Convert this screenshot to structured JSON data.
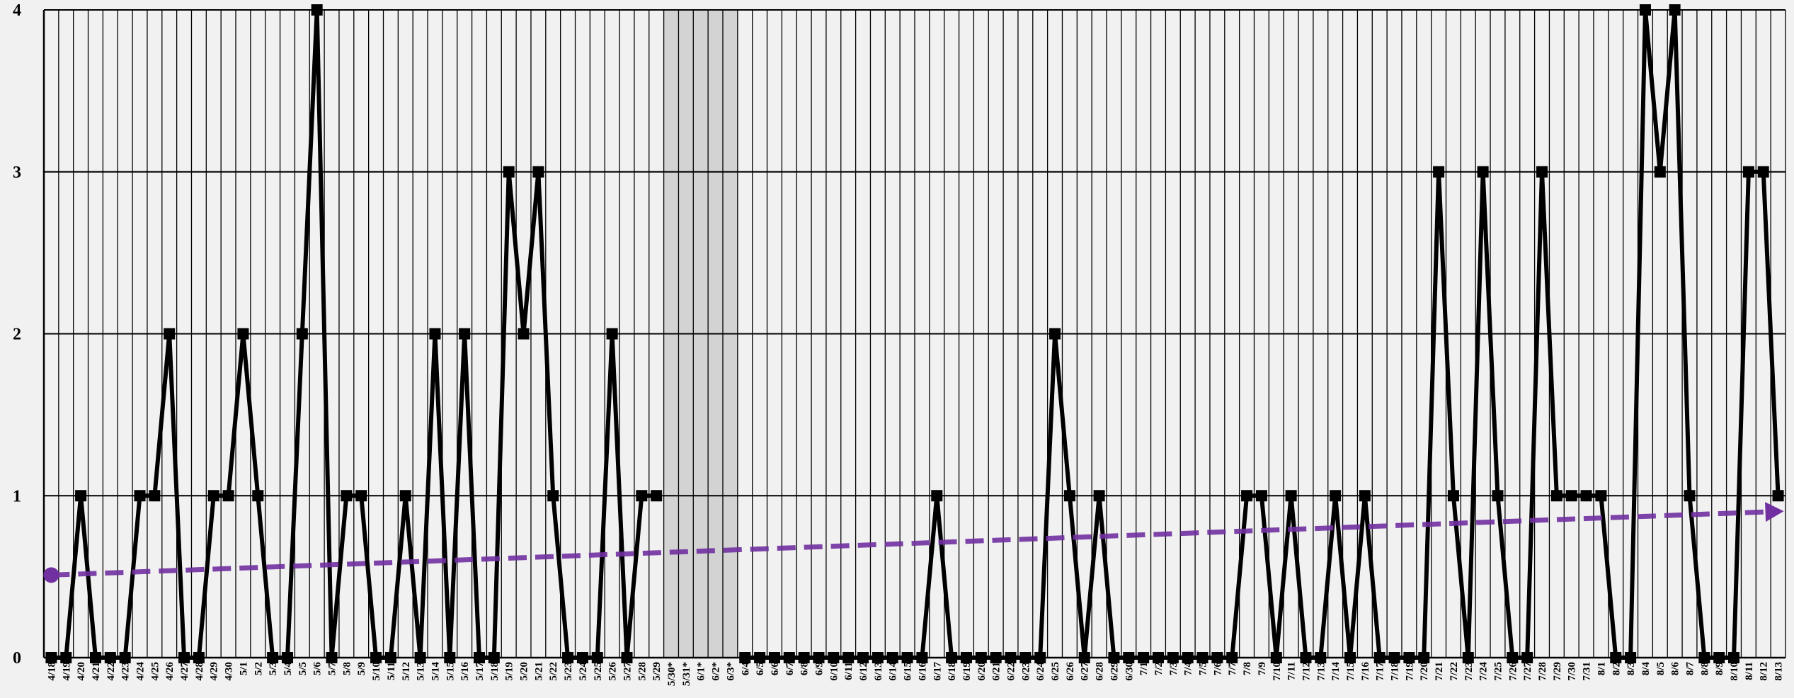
{
  "chart_data": {
    "type": "line",
    "title": "",
    "xlabel": "",
    "ylabel": "",
    "ylim": [
      0,
      4
    ],
    "yticks": [
      "0",
      "1",
      "2",
      "3",
      "4"
    ],
    "grid": true,
    "legend": "none",
    "categories": [
      "4/18",
      "4/19",
      "4/20",
      "4/21",
      "4/22",
      "4/23",
      "4/24",
      "4/25",
      "4/26",
      "4/27",
      "4/28",
      "4/29",
      "4/30",
      "5/1",
      "5/2",
      "5/3",
      "5/4",
      "5/5",
      "5/6",
      "5/7",
      "5/8",
      "5/9",
      "5/10",
      "5/11",
      "5/12",
      "5/13",
      "5/14",
      "5/15",
      "5/16",
      "5/17",
      "5/18",
      "5/19",
      "5/20",
      "5/21",
      "5/22",
      "5/23",
      "5/24",
      "5/25",
      "5/26",
      "5/27",
      "5/28",
      "5/29",
      "5/30*",
      "5/31*",
      "6/1*",
      "6/2*",
      "6/3*",
      "6/4",
      "6/5",
      "6/6",
      "6/7",
      "6/8",
      "6/9",
      "6/10",
      "6/11",
      "6/12",
      "6/13",
      "6/14",
      "6/15",
      "6/16",
      "6/17",
      "6/18",
      "6/19",
      "6/20",
      "6/21",
      "6/22",
      "6/23",
      "6/24",
      "6/25",
      "6/26",
      "6/27",
      "6/28",
      "6/29",
      "6/30",
      "7/1",
      "7/2",
      "7/3",
      "7/4",
      "7/5",
      "7/6",
      "7/7",
      "7/8",
      "7/9",
      "7/10",
      "7/11",
      "7/12",
      "7/13",
      "7/14",
      "7/15",
      "7/16",
      "7/17",
      "7/18",
      "7/19",
      "7/20",
      "7/21",
      "7/22",
      "7/23",
      "7/24",
      "7/25",
      "7/26",
      "7/27",
      "7/28",
      "7/29",
      "7/30",
      "7/31",
      "8/1",
      "8/2",
      "8/3",
      "8/4",
      "8/5",
      "8/6",
      "8/7",
      "8/8",
      "8/9",
      "8/10",
      "8/11",
      "8/12",
      "8/13"
    ],
    "series": [
      {
        "color": "#000000",
        "marker": "square",
        "values": [
          0,
          0,
          1,
          0,
          0,
          0,
          1,
          1,
          2,
          0,
          0,
          1,
          1,
          2,
          1,
          0,
          0,
          2,
          4,
          0,
          1,
          1,
          0,
          0,
          1,
          0,
          2,
          0,
          2,
          0,
          0,
          3,
          2,
          3,
          1,
          0,
          0,
          0,
          2,
          0,
          1,
          1,
          null,
          null,
          null,
          null,
          null,
          0,
          0,
          0,
          0,
          0,
          0,
          0,
          0,
          0,
          0,
          0,
          0,
          0,
          1,
          0,
          0,
          0,
          0,
          0,
          0,
          0,
          2,
          1,
          0,
          1,
          0,
          0,
          0,
          0,
          0,
          0,
          0,
          0,
          0,
          1,
          1,
          0,
          1,
          0,
          0,
          1,
          0,
          1,
          0,
          0,
          0,
          0,
          3,
          1,
          0,
          3,
          1,
          0,
          0,
          3,
          1,
          1,
          1,
          1,
          0,
          0,
          4,
          3,
          4,
          1,
          0,
          0,
          0,
          3,
          3,
          1
        ]
      }
    ],
    "trendline": {
      "color": "#7030a0",
      "style": "dashed",
      "start": 0.51,
      "end": 0.9
    },
    "shaded_categories": [
      "5/30*",
      "5/31*",
      "6/1*",
      "6/2*",
      "6/3*"
    ],
    "shade_color": "#d3d3d3"
  }
}
